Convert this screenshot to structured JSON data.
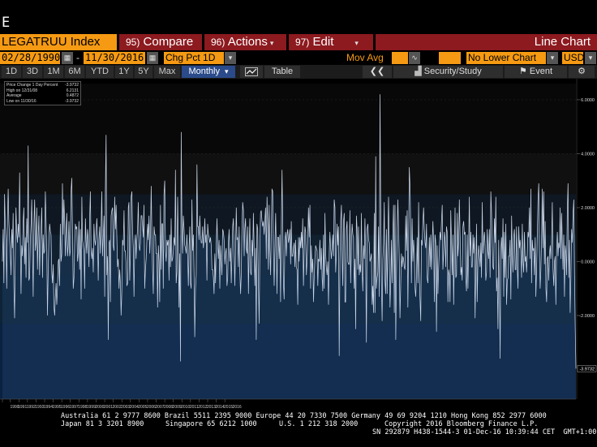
{
  "command_line": "E",
  "title_bar": {
    "ticker": "LEGATRUU Index",
    "compare": {
      "num": "95)",
      "label": "Compare"
    },
    "actions": {
      "num": "96)",
      "label": "Actions"
    },
    "edit": {
      "num": "97)",
      "label": "Edit"
    },
    "view": "Line Chart"
  },
  "params": {
    "start_date": "02/28/1990",
    "end_date": "11/30/2016",
    "sep": "-",
    "field": "Chg Pct 1D",
    "mov_avg_label": "Mov Avg",
    "lower_chart": "No Lower Chart",
    "currency": "USD"
  },
  "range": {
    "buttons": [
      "1D",
      "3D",
      "1M",
      "6M",
      "YTD",
      "1Y",
      "5Y",
      "Max"
    ],
    "periodicity": "Monthly",
    "table_label": "Table",
    "security_study": "Security/Study",
    "event": "Event"
  },
  "legend": {
    "rows": [
      {
        "label": "Price Change 1 Day Percent",
        "value": "-3.9732"
      },
      {
        "label": "High on 12/31/08",
        "value": "6.2131"
      },
      {
        "label": "Average",
        "value": "0.4872"
      },
      {
        "label": "Low on 11/30/16",
        "value": "-3.9732"
      }
    ]
  },
  "chart_data": {
    "type": "line",
    "series": [
      {
        "x_start": "1990-02",
        "x_end": "2016-11",
        "values": [
          0.0,
          1.2,
          -0.8,
          2.5,
          1.4,
          0.8,
          -1.0,
          1.6,
          2.7,
          1.5,
          0.9,
          0.3,
          -0.5,
          1.2,
          0.5,
          1.8,
          -0.9,
          -2.1,
          0.4,
          2.0,
          1.1,
          0.7,
          1.4,
          0.9,
          3.3,
          1.0,
          -1.2,
          0.6,
          0.2,
          1.5,
          2.0,
          -0.1,
          0.9,
          -0.6,
          1.6,
          0.7,
          4.3,
          -0.7,
          -0.6,
          0.8,
          1.4,
          2.3,
          0.6,
          -1.3,
          1.4,
          2.3,
          0.4,
          0.7,
          2.0,
          -0.3,
          1.0,
          1.7,
          -0.5,
          0.7,
          1.2,
          2.0,
          -0.6,
          1.0,
          0.3,
          0.4,
          2.6,
          1.5,
          0.4,
          -2.0,
          -0.4,
          0.9,
          1.4,
          1.1,
          1.0,
          -0.4,
          -0.8,
          -0.1,
          -1.7,
          -2.0,
          -1.3,
          -0.8,
          -1.6,
          -0.9,
          0.0,
          0.1,
          -0.9,
          1.4,
          0.0,
          0.3,
          2.9,
          1.0,
          2.3,
          1.5,
          0.2,
          1.2,
          1.8,
          0.2,
          0.6,
          1.5,
          0.2,
          0.4,
          2.6,
          3.1,
          1.0,
          -1.0,
          -0.6,
          0.6,
          1.4,
          1.2,
          1.3,
          0.0,
          0.3,
          1.5,
          -0.3,
          1.2,
          -1.4,
          2.4,
          0.8,
          0.6,
          0.4,
          -1.0,
          1.6,
          0.8,
          0.3,
          1.2,
          0.8,
          -0.2,
          1.6,
          2.6,
          0.4,
          0.1,
          0.5,
          -0.4,
          1.4,
          0.8,
          0.6,
          1.1,
          1.6,
          0.9,
          -0.7,
          0.8,
          1.3,
          0.3,
          1.3,
          2.6,
          0.2,
          0.9,
          1.7,
          -1.3,
          2.6,
          4.7,
          -0.5,
          0.2,
          -2.9,
          0.7,
          0.8,
          -1.5,
          1.7,
          1.9,
          2.0,
          0.6,
          0.4,
          2.4,
          1.2,
          2.1,
          1.0,
          -0.2,
          0.1,
          -1.0,
          -0.3,
          -0.8,
          -2.0,
          -1.1,
          0.8,
          0.6,
          1.9,
          0.4,
          0.4,
          -0.1,
          -0.9,
          -0.8,
          2.0,
          2.2,
          -0.7,
          0.3,
          2.4,
          2.6,
          1.2,
          0.5,
          -1.3,
          0.6,
          1.0,
          0.1,
          0.8,
          1.2,
          2.2,
          0.6,
          0.4,
          0.7,
          1.7,
          1.7,
          1.3,
          0.9,
          2.1,
          -1.0,
          -0.3,
          0.1,
          0.8,
          1.4,
          0.8,
          1.7,
          0.3,
          1.0,
          2.8,
          1.1,
          -0.3,
          -1.2,
          1.3,
          1.0,
          1.0,
          0.3,
          0.3,
          -1.7,
          0.6,
          0.0,
          -1.5,
          2.1,
          -0.3,
          1.4,
          1.4,
          -1.0,
          2.5,
          3.0,
          0.4,
          0.0,
          0.8,
          0.6,
          0.8,
          -0.7,
          1.0,
          -0.2,
          1.6,
          0.0,
          0.1,
          0.4,
          0.9,
          0.6,
          3.4,
          -0.8,
          -0.4,
          2.4,
          0.6,
          -1.7,
          0.3,
          -3.7,
          4.8,
          1.3,
          0.3,
          1.7,
          1.2,
          0.6,
          0.5,
          0.3,
          1.0,
          0.3,
          -0.9,
          0.5,
          1.3,
          -0.8,
          -1.0,
          2.3,
          0.4,
          1.0,
          -0.6,
          -2.8,
          -1.0,
          -0.5,
          3.6,
          1.3,
          1.3,
          0.8,
          1.7,
          1.0,
          0.7,
          0.7,
          1.3,
          0.5,
          0.8,
          1.6,
          0.7,
          1.0,
          -0.7,
          1.4,
          1.0,
          0.9,
          0.7,
          0.9,
          0.6,
          -0.3,
          -0.3,
          -0.6,
          -1.2,
          0.3,
          -0.8,
          0.6,
          1.6,
          0.7,
          0.1,
          0.8,
          -1.0,
          0.6,
          0.0,
          -0.5,
          1.2,
          1.1,
          0.8,
          -0.1,
          0.3,
          0.5,
          -0.9,
          -0.6,
          0.7,
          1.2,
          0.0,
          0.5,
          -0.8,
          0.3,
          1.3,
          1.6,
          0.4,
          -0.9,
          0.5,
          2.0,
          0.8,
          0.9,
          -0.2,
          1.3,
          -0.4,
          -1.2,
          -0.5,
          1.2,
          2.2,
          1.9,
          0.2,
          1.2,
          1.6,
          0.5,
          0.3,
          1.3,
          -1.2,
          0.4,
          1.6,
          -0.4,
          -0.5,
          0.8,
          0.2,
          1.8,
          0.5,
          -0.9,
          0.5,
          -2.9,
          1.4,
          1.2,
          -0.9,
          -2.3,
          0.6,
          1.8,
          1.9,
          1.5,
          1.3,
          1.5,
          1.0,
          1.5,
          2.0,
          0.1,
          2.4,
          1.4,
          -0.3,
          2.1,
          0.4,
          -0.5,
          1.3,
          2.7,
          2.6,
          0.5,
          -0.9,
          0.5,
          1.8,
          0.6,
          -1.2,
          0.9,
          0.9,
          0.1,
          1.0,
          -1.5,
          1.2,
          3.4,
          1.3,
          -0.8,
          -1.4,
          0.8,
          1.1,
          0.2,
          1.0,
          1.2,
          0.7,
          0.9,
          1.2,
          -0.1,
          1.5,
          0.2,
          0.2,
          0.5,
          0.7,
          -0.2,
          0.8,
          -0.2,
          -0.3,
          -1.6,
          0.9,
          0.0,
          0.9,
          0.5,
          1.1,
          0.5,
          1.6,
          -0.9,
          0.4,
          1.3,
          1.1,
          -0.5,
          0.0,
          0.8,
          2.0,
          0.9,
          2.1,
          -1.0,
          0.6,
          -0.4,
          0.1,
          -1.5,
          -0.5,
          0.1,
          0.6,
          0.5,
          0.4,
          -0.9,
          0.1,
          0.0,
          0.8,
          -0.3,
          0.5,
          -0.6,
          -1.1,
          1.0,
          -1.0,
          1.8,
          0.3,
          -0.2,
          -0.5,
          0.0,
          -1.6,
          0.3,
          1.1,
          0.5,
          0.1,
          0.5,
          1.0,
          0.2,
          2.3,
          2.0,
          -0.4,
          0.3,
          1.4,
          0.6,
          1.3,
          -3.5,
          0.0,
          1.5,
          2.1,
          0.3,
          -0.9,
          1.5,
          1.8,
          -1.5,
          -1.5,
          1.2,
          1.5,
          0.0,
          -0.1,
          -0.1,
          1.9,
          -0.8,
          0.7,
          1.4,
          1.0,
          0.9,
          -1.0,
          0.1,
          -2.5,
          1.7,
          1.2,
          -0.3,
          1.3,
          -0.5,
          -0.1,
          -0.4,
          1.8,
          -0.3,
          -1.1,
          0.6,
          0.1,
          1.6,
          0.2,
          -3.0,
          1.2,
          1.4,
          0.8,
          0.7,
          0.0,
          0.1,
          0.3,
          -1.6,
          -0.9,
          -1.9,
          1.8,
          -1.9,
          3.9,
          -1.0,
          -0.6,
          -0.4,
          1.3,
          -1.3,
          6.2,
          2.1,
          -0.7,
          -2.2,
          0.1,
          0.7,
          2.2,
          -0.7,
          -1.2,
          1.2,
          -1.2,
          0.7,
          2.4,
          0.5,
          -1.7,
          -0.8,
          0.8,
          -0.8,
          1.0,
          2.1,
          -1.9,
          2.1,
          -2.9,
          -0.6,
          1.2,
          2.3,
          1.2,
          0.0,
          -2.1,
          -0.9,
          0.3,
          -0.2,
          0.2,
          0.1,
          -0.2,
          -0.3,
          1.7,
          0.4,
          1.9,
          -1.7,
          0.4,
          3.5,
          2.8,
          1.2,
          -0.8,
          1.6,
          0.0,
          0.8,
          0.3,
          -1.0,
          -1.3,
          -0.6,
          0.9,
          -0.8,
          2.2,
          -0.4,
          -1.4,
          -2.2,
          0.8,
          0.6,
          1.4,
          2.0,
          1.2,
          0.7,
          0.5,
          1.4,
          -0.6,
          -0.8,
          -0.1,
          0.9,
          -0.2,
          1.0,
          -0.3,
          0.6,
          1.5,
          0.7,
          -1.5,
          1.0,
          0.7,
          -2.6,
          0.6,
          -1.2,
          -0.3,
          0.4,
          1.1,
          0.8,
          1.5,
          2.1,
          -0.3,
          0.3,
          1.1,
          0.8,
          -0.2,
          1.3,
          1.1,
          -1.5,
          -0.3,
          -0.5,
          -1.5,
          1.9,
          0.7,
          -0.5,
          1.0,
          -1.6,
          0.2,
          2.0,
          -0.6,
          -0.5,
          1.8,
          0.2,
          0.7,
          2.3,
          1.0,
          -0.5,
          -0.2,
          -0.7,
          1.3,
          1.5,
          1.0,
          1.1,
          -0.6,
          -1.1,
          1.0,
          -1.0,
          0.6,
          2.4,
          0.2,
          1.1,
          -0.2,
          -0.2,
          1.0,
          0.3,
          0.9,
          -2.1,
          -0.3,
          1.4,
          -1.5,
          0.0,
          0.6,
          0.2,
          -0.2,
          0.7,
          -0.6,
          2.2,
          0.3,
          0.8,
          1.1,
          0.6,
          -0.7,
          -0.4,
          1.2,
          0.4,
          0.1,
          1.2,
          -0.6,
          2.6,
          1.8,
          0.6,
          -0.2,
          -0.3,
          1.6,
          0.7,
          2.4,
          -1.1,
          -0.6,
          -2.5,
          0.8,
          -1.0,
          -3.6,
          0.4,
          0.9,
          0.1,
          1.6,
          -1.3,
          1.1,
          -0.6,
          1.4,
          -1.6,
          -0.7,
          -0.6,
          0.2,
          0.2,
          0.8,
          -1.4,
          1.7,
          0.4,
          -0.4,
          0.9,
          1.2,
          -0.3,
          -0.3,
          1.3,
          -0.2,
          -1.0,
          1.3,
          0.5,
          0.8,
          0.4,
          -0.6,
          1.4,
          0.0,
          -0.4,
          1.1,
          0.0,
          0.2,
          -0.4,
          0.3,
          1.1,
          0.9,
          2.0,
          0.1,
          2.7,
          -0.8,
          0.8,
          0.4,
          0.5,
          -0.5,
          0.9,
          -1.3,
          -0.3,
          1.0,
          2.3,
          2.9,
          0.6,
          -1.0,
          -0.3,
          0.9,
          2.7,
          0.5,
          2.6,
          -0.1,
          1.5,
          -1.0,
          -1.5,
          0.1,
          0.2,
          -0.7,
          0.3,
          0.6,
          0.1,
          0.7,
          2.2,
          -0.3,
          -0.9,
          0.0,
          0.2,
          -1.6,
          0.4,
          1.1,
          0.2,
          0.7,
          0.5,
          2.0,
          0.1,
          1.8,
          0.6,
          -0.3,
          1.0,
          -1.3,
          0.6,
          0.3,
          -0.5,
          1.9,
          2.9,
          -0.6,
          0.8,
          -1.9,
          -0.6,
          1.2,
          0.7,
          1.8,
          2.3,
          -0.2,
          -2.4,
          -3.97
        ]
      }
    ],
    "y_ticks": [
      "6.0000",
      "4.0000",
      "2.0000",
      "0.0000",
      "-2.0000"
    ],
    "last_value": "-3.9732",
    "x_ticks": [
      "1990",
      "1991",
      "1992",
      "1993",
      "1994",
      "1995",
      "1996",
      "1997",
      "1998",
      "1999",
      "2000",
      "2001",
      "2002",
      "2003",
      "2004",
      "2005",
      "2006",
      "2007",
      "2008",
      "2009",
      "2010",
      "2011",
      "2012",
      "2013",
      "2014",
      "2015",
      "2016"
    ],
    "ylim": [
      -5.1,
      6.6
    ],
    "grid": true,
    "legend_position": "top-left"
  },
  "footer": {
    "line1": "Australia 61 2 9777 8600 Brazil 5511 2395 9000 Europe 44 20 7330 7500 Germany 49 69 9204 1210 Hong Kong 852 2977 6000",
    "line2a": "Japan 81 3 3201 8900",
    "line2b": "Singapore 65 6212 1000",
    "line2c": "U.S. 1 212 318 2000",
    "line2d": "Copyright 2016 Bloomberg Finance L.P.",
    "line3": "SN 292879 H438-1544-3 01-Dec-16 10:39:44 CET  GMT+1:00"
  },
  "colors": {
    "title_bar_accent": "#8c1a1f",
    "input_field": "#f59a12",
    "line": "#c8d4e6",
    "area_fill": "#1c3a5c"
  }
}
